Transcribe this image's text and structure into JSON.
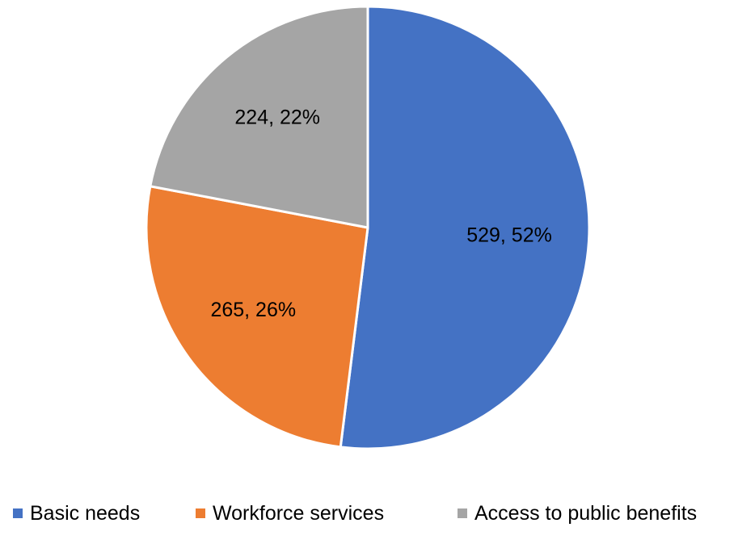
{
  "chart_data": {
    "type": "pie",
    "categories": [
      "Basic needs",
      "Workforce services",
      "Access to public benefits"
    ],
    "values": [
      529,
      265,
      224
    ],
    "percents": [
      "52%",
      "26%",
      "22%"
    ],
    "data_labels": [
      "529, 52%",
      "265, 26%",
      "224, 22%"
    ],
    "colors": [
      "#4472C4",
      "#ED7D31",
      "#A5A5A5"
    ],
    "start_angle": "12 o'clock",
    "direction": "clockwise",
    "legend_position": "bottom",
    "title": ""
  }
}
